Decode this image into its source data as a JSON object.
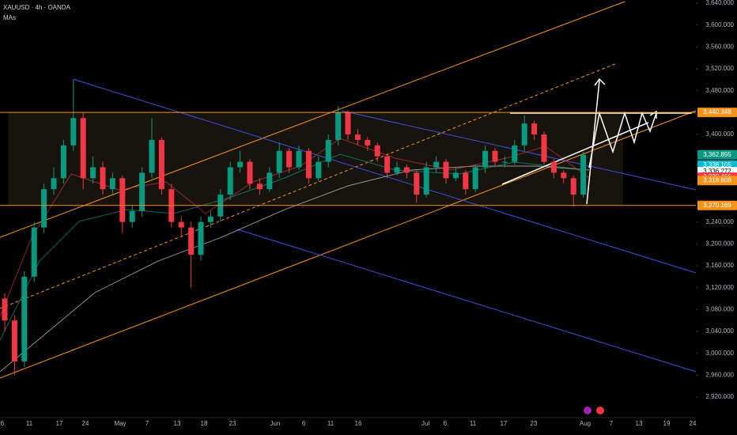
{
  "header": {
    "symbol": "XAUUSD · 4h · OANDA",
    "indicator": "MAs"
  },
  "chart_data": {
    "type": "candlestick",
    "ylim": [
      2920,
      3640
    ],
    "yticks": [
      {
        "value": 3640,
        "label": "3,640.000"
      },
      {
        "value": 3600,
        "label": "3,600.000"
      },
      {
        "value": 3560,
        "label": "3,560.000"
      },
      {
        "value": 3520,
        "label": "3,520.000"
      },
      {
        "value": 3480,
        "label": "3,480.000"
      },
      {
        "value": 3400,
        "label": "3,400.000"
      },
      {
        "value": 3240,
        "label": "3,240.000"
      },
      {
        "value": 3200,
        "label": "3,200.000"
      },
      {
        "value": 3160,
        "label": "3,160.000"
      },
      {
        "value": 3120,
        "label": "3,120.000"
      },
      {
        "value": 3080,
        "label": "3,080.000"
      },
      {
        "value": 3040,
        "label": "3,040.000"
      },
      {
        "value": 3000,
        "label": "3,000.000"
      },
      {
        "value": 2960,
        "label": "2,960.000"
      },
      {
        "value": 2920,
        "label": "2,920.000"
      }
    ],
    "xticks": [
      "6",
      "11",
      "17",
      "24",
      "May",
      "7",
      "13",
      "18",
      "23",
      "Jun",
      "6",
      "11",
      "16",
      "Jul",
      "6",
      "11",
      "17",
      "23",
      "Aug",
      "7",
      "13",
      "19",
      "24"
    ],
    "price_tags": [
      {
        "value": 3440.348,
        "label": "3,440.348",
        "color": "#f7931a"
      },
      {
        "value": 3362.895,
        "label": "3,362.895",
        "color": "#089981"
      },
      {
        "value": 3338.105,
        "label": "3,338.105",
        "color": "#00bcd4"
      },
      {
        "value": 3336.272,
        "label": "3,336.272",
        "color": "#ffffff"
      },
      {
        "value": 3330.466,
        "label": "3,330.466",
        "color": "#f23645"
      },
      {
        "value": 3318.608,
        "label": "3,318.608",
        "color": "#f7931a"
      },
      {
        "value": 3270.169,
        "label": "3,270.169",
        "color": "#f7931a"
      }
    ],
    "up_color": "#089981",
    "down_color": "#f23645",
    "open": [
      3100,
      3060,
      2985,
      3140,
      3230,
      3300,
      3320,
      3380,
      3430,
      3320,
      3340,
      3300,
      3320,
      3240,
      3260,
      3330,
      3390,
      3300,
      3240,
      3230,
      3180,
      3240,
      3250,
      3290,
      3340,
      3350,
      3310,
      3300,
      3330,
      3370,
      3340,
      3370,
      3320,
      3350,
      3390,
      3440,
      3400,
      3390,
      3380,
      3360,
      3330,
      3340,
      3330,
      3290,
      3340,
      3350,
      3320,
      3330,
      3300,
      3340,
      3370,
      3350,
      3350,
      3380,
      3420,
      3400,
      3350,
      3330,
      3320,
      3290
    ],
    "high": [
      3110,
      3070,
      3150,
      3240,
      3310,
      3340,
      3390,
      3500,
      3440,
      3360,
      3350,
      3330,
      3325,
      3270,
      3340,
      3430,
      3395,
      3310,
      3250,
      3240,
      3250,
      3260,
      3300,
      3350,
      3370,
      3355,
      3320,
      3340,
      3385,
      3375,
      3380,
      3375,
      3360,
      3400,
      3452,
      3445,
      3410,
      3395,
      3385,
      3365,
      3350,
      3345,
      3335,
      3350,
      3360,
      3355,
      3340,
      3335,
      3345,
      3380,
      3375,
      3360,
      3390,
      3435,
      3425,
      3405,
      3355,
      3335,
      3325,
      3368
    ],
    "low": [
      3040,
      2960,
      2975,
      3130,
      3220,
      3290,
      3310,
      3370,
      3300,
      3310,
      3290,
      3290,
      3220,
      3230,
      3250,
      3320,
      3290,
      3230,
      3215,
      3120,
      3170,
      3230,
      3240,
      3280,
      3330,
      3300,
      3290,
      3295,
      3320,
      3330,
      3335,
      3310,
      3315,
      3340,
      3380,
      3390,
      3380,
      3370,
      3350,
      3320,
      3325,
      3320,
      3275,
      3285,
      3330,
      3310,
      3315,
      3290,
      3295,
      3330,
      3340,
      3340,
      3345,
      3370,
      3390,
      3345,
      3320,
      3310,
      3268,
      3285
    ],
    "close": [
      3060,
      2985,
      3140,
      3230,
      3300,
      3320,
      3380,
      3430,
      3320,
      3340,
      3300,
      3320,
      3240,
      3260,
      3330,
      3390,
      3300,
      3240,
      3230,
      3180,
      3240,
      3250,
      3290,
      3340,
      3350,
      3310,
      3300,
      3330,
      3370,
      3340,
      3370,
      3320,
      3350,
      3390,
      3440,
      3400,
      3390,
      3380,
      3360,
      3330,
      3340,
      3330,
      3290,
      3340,
      3350,
      3320,
      3330,
      3300,
      3340,
      3370,
      3350,
      3350,
      3380,
      3420,
      3400,
      3350,
      3330,
      3320,
      3290,
      3362.895
    ]
  }
}
